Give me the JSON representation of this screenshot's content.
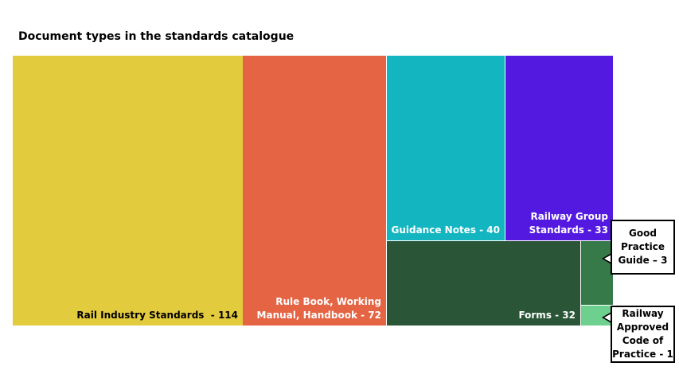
{
  "chart_data": {
    "type": "treemap",
    "title": "Document types in the standards catalogue",
    "items": [
      {
        "name": "Rail Industry Standards",
        "value": 114,
        "color": "#E3CB3E",
        "label_color": "#000000",
        "label": "Rail Industry Standards  - 114"
      },
      {
        "name": "Rule Book, Working Manual, Handbook",
        "value": 72,
        "color": "#E46443",
        "label_color": "#ffffff",
        "label": "Rule Book, Working\nManual, Handbook - 72"
      },
      {
        "name": "Guidance Notes",
        "value": 40,
        "color": "#13B5C1",
        "label_color": "#ffffff",
        "label": "Guidance Notes - 40"
      },
      {
        "name": "Railway Group Standards",
        "value": 33,
        "color": "#5419E0",
        "label_color": "#ffffff",
        "label": "Railway Group\nStandards - 33"
      },
      {
        "name": "Forms",
        "value": 32,
        "color": "#2A5637",
        "label_color": "#ffffff",
        "label": "Forms - 32"
      },
      {
        "name": "Good Practice Guide",
        "value": 3,
        "color": "#367A49",
        "label_color": "#ffffff",
        "callout": "Good\nPractice\nGuide – 3"
      },
      {
        "name": "Railway Approved Code of Practice",
        "value": 1,
        "color": "#6ED08F",
        "label_color": "#ffffff",
        "callout": "Railway\nApproved\nCode of\nPractice - 1"
      }
    ]
  }
}
